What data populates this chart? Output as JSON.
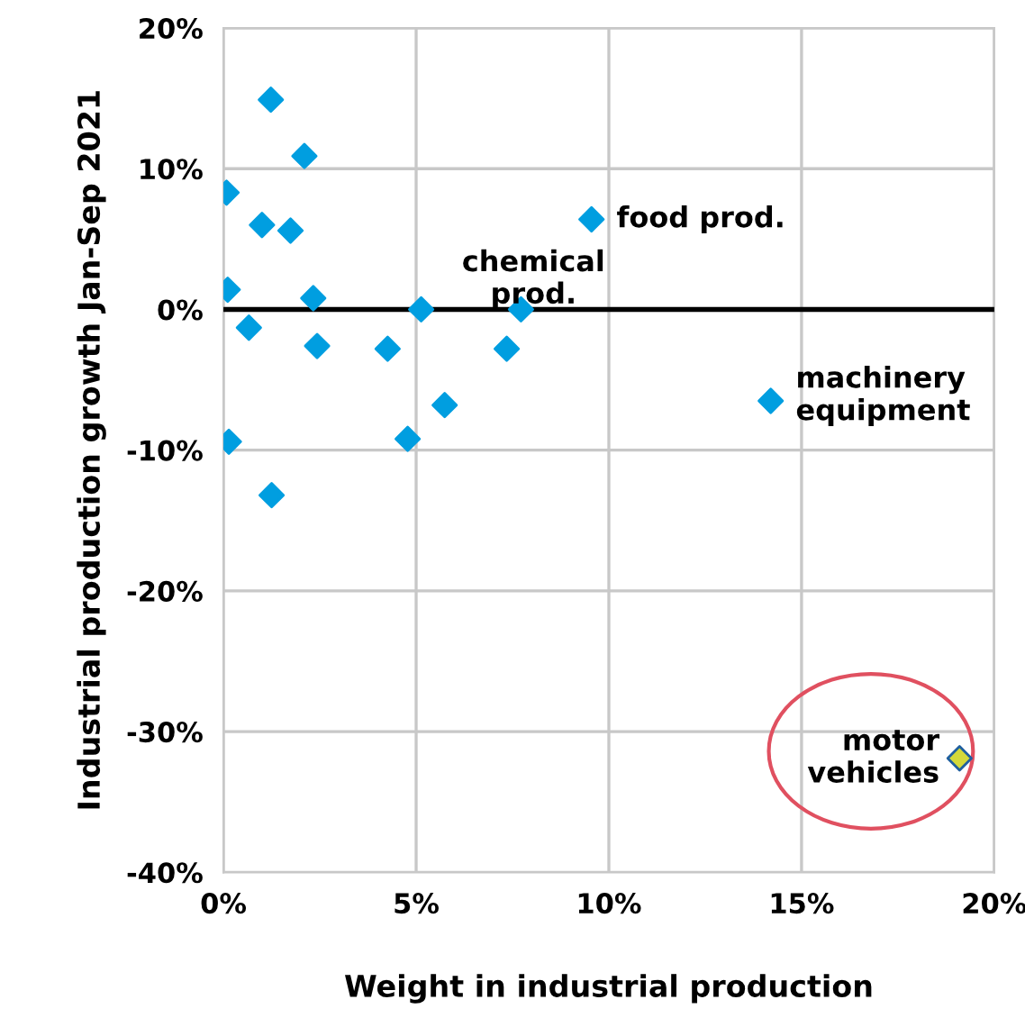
{
  "chart_data": {
    "type": "scatter",
    "xlabel": "Weight in industrial production",
    "ylabel": "Industrial production growth Jan-Sep 2021",
    "x": [
      0.08,
      1.23,
      2.1,
      1.0,
      1.74,
      0.11,
      2.33,
      0.66,
      2.43,
      4.26,
      5.13,
      7.35,
      7.72,
      5.74,
      4.78,
      0.14,
      1.25,
      9.55,
      14.2,
      19.1
    ],
    "values": [
      8.3,
      14.9,
      10.9,
      6.0,
      5.6,
      1.4,
      0.8,
      -1.3,
      -2.6,
      -2.8,
      0,
      -2.8,
      0,
      -6.8,
      -9.2,
      -9.4,
      -13.2,
      6.4,
      -6.5,
      -31.9
    ],
    "colors": [
      "#009ee0",
      "#009ee0",
      "#009ee0",
      "#009ee0",
      "#009ee0",
      "#009ee0",
      "#009ee0",
      "#009ee0",
      "#009ee0",
      "#009ee0",
      "#009ee0",
      "#009ee0",
      "#009ee0",
      "#009ee0",
      "#009ee0",
      "#009ee0",
      "#009ee0",
      "#009ee0",
      "#009ee0",
      "#d4d93a"
    ],
    "marker": "diamond",
    "grid": true,
    "xlim": [
      0,
      20
    ],
    "xticks": [
      {
        "value": 0,
        "label": "0%"
      },
      {
        "value": 5,
        "label": "5%"
      },
      {
        "value": 10,
        "label": "10%"
      },
      {
        "value": 15,
        "label": "15%"
      },
      {
        "value": 20,
        "label": "20%"
      }
    ],
    "ylim": [
      -40,
      20
    ],
    "yticks": [
      {
        "value": -40,
        "label": "-40%"
      },
      {
        "value": -30,
        "label": "-30%"
      },
      {
        "value": -20,
        "label": "-20%"
      },
      {
        "value": -10,
        "label": "-10%"
      },
      {
        "value": 0,
        "label": "0%"
      },
      {
        "value": 10,
        "label": "10%"
      },
      {
        "value": 20,
        "label": "20%"
      }
    ],
    "ref_lines": [
      {
        "axis": "y",
        "value": 0,
        "color": "#000000"
      }
    ],
    "annotations": [
      {
        "text": "food prod.",
        "x": 9.55,
        "y": 6.4
      },
      {
        "text": "chemical\nprod.",
        "x": 7.72,
        "y": 0
      },
      {
        "text": "machinery\nequipment",
        "x": 14.2,
        "y": -6.5
      },
      {
        "text": "motor\nvehicles",
        "x": 19.1,
        "y": -31.9
      }
    ]
  }
}
